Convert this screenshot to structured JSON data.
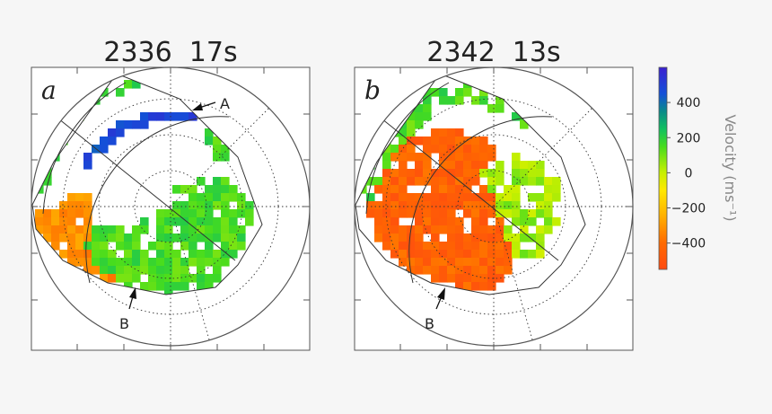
{
  "chart_data": [
    {
      "type": "heatmap",
      "panel_letter": "a",
      "title": "2336  17s",
      "annotations": [
        {
          "label": "A",
          "points_to": "westward (blue) flow band near poleward edge of radar field of view"
        },
        {
          "label": "B",
          "points_to": "equatorward edge of backscatter in lower field of view"
        }
      ],
      "regions": [
        {
          "name": "poleward-band",
          "velocity_ms": 480
        },
        {
          "name": "upper-scatter",
          "velocity_ms": 160
        },
        {
          "name": "central-scatter",
          "velocity_ms": 150
        },
        {
          "name": "lower-left-scatter",
          "velocity_ms": -320
        }
      ]
    },
    {
      "type": "heatmap",
      "panel_letter": "b",
      "title": "2342  13s",
      "annotations": [
        {
          "label": "B",
          "points_to": "equatorward edge of backscatter in lower field of view"
        }
      ],
      "regions": [
        {
          "name": "upper-scatter",
          "velocity_ms": 150
        },
        {
          "name": "main-scatter",
          "velocity_ms": -440
        },
        {
          "name": "right-scatter",
          "velocity_ms": 50
        }
      ]
    }
  ],
  "colorbar": {
    "label": "Velocity (ms⁻¹)",
    "min": -550,
    "max": 600,
    "ticks": [
      {
        "value": 400,
        "label": "400"
      },
      {
        "value": 200,
        "label": "200"
      },
      {
        "value": 0,
        "label": "0"
      },
      {
        "value": -200,
        "label": "−200"
      },
      {
        "value": -400,
        "label": "−400"
      }
    ],
    "stops": [
      {
        "value": -550,
        "color": "#ff4a10"
      },
      {
        "value": -400,
        "color": "#ff6a00"
      },
      {
        "value": -250,
        "color": "#ffae00"
      },
      {
        "value": -100,
        "color": "#ffe800"
      },
      {
        "value": 0,
        "color": "#c8f000"
      },
      {
        "value": 150,
        "color": "#46dc1e"
      },
      {
        "value": 250,
        "color": "#10c060"
      },
      {
        "value": 350,
        "color": "#0a8a8a"
      },
      {
        "value": 450,
        "color": "#1450d8"
      },
      {
        "value": 600,
        "color": "#3a20d0"
      }
    ]
  }
}
